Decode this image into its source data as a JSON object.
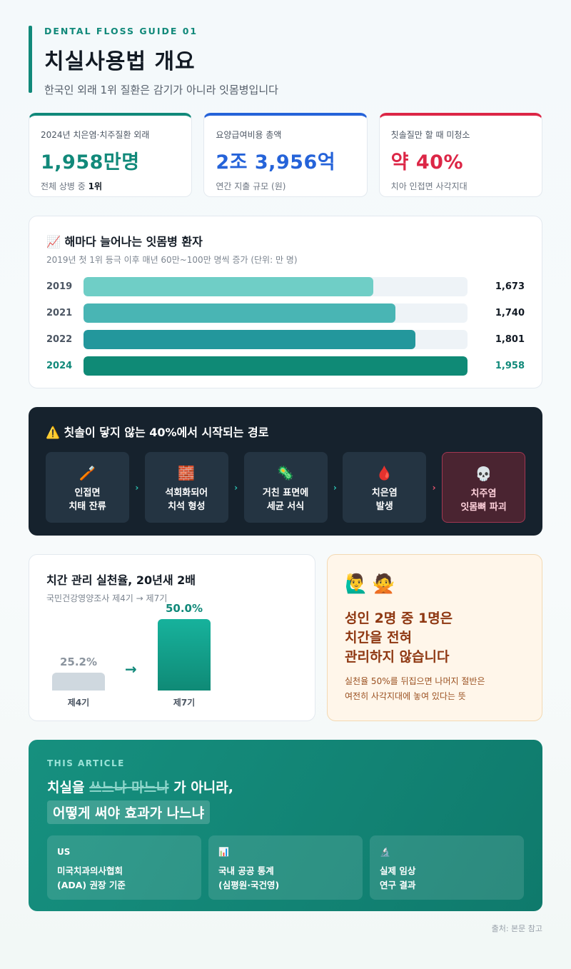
{
  "header": {
    "eyebrow": "DENTAL FLOSS GUIDE 01",
    "title": "치실사용법 개요",
    "subtitle": "한국인 외래 1위 질환은 감기가 아니라 잇몸병입니다"
  },
  "stats": [
    {
      "label": "2024년 치은염·치주질환 외래",
      "value": "1,958만명",
      "note_prefix": "전체 상병 중 ",
      "note_bold": "1위",
      "color": "#11897a"
    },
    {
      "label": "요양급여비용 총액",
      "value": "2조 3,956억",
      "note_prefix": "연간 지출 규모 (원)",
      "note_bold": "",
      "color": "#2563d9"
    },
    {
      "label": "칫솔질만 할 때 미청소",
      "value": "약 40%",
      "note_prefix": "치아 인접면 사각지대",
      "note_bold": "",
      "color": "#dc2646"
    }
  ],
  "growth": {
    "icon": "📈",
    "title": "해마다 늘어나는 잇몸병 환자",
    "subtitle": "2019년 첫 1위 등극 이후 매년 60만~100만 명씩 증가 (단위: 만 명)"
  },
  "chart_data": {
    "type": "bar",
    "orientation": "horizontal",
    "categories": [
      "2019",
      "2021",
      "2022",
      "2024"
    ],
    "values": [
      1673,
      1740,
      1801,
      1958
    ],
    "value_labels": [
      "1,673",
      "1,740",
      "1,801",
      "1,958"
    ],
    "unit": "만 명",
    "highlight": "2024",
    "colors": [
      "#6fcec6",
      "#49b5b4",
      "#23979c",
      "#0f8a76"
    ]
  },
  "pathway": {
    "icon": "⚠️",
    "title": "칫솔이 닿지 않는 40%에서 시작되는 경로",
    "steps": [
      {
        "icon": "🪥",
        "line1": "인접면",
        "line2": "치태 잔류"
      },
      {
        "icon": "🧱",
        "line1": "석회화되어",
        "line2": "치석 형성"
      },
      {
        "icon": "🦠",
        "line1": "거친 표면에",
        "line2": "세균 서식"
      },
      {
        "icon": "🩸",
        "line1": "치은염",
        "line2": "발생"
      },
      {
        "icon": "💀",
        "line1": "치주염",
        "line2": "잇몸뼈 파괴"
      }
    ],
    "arrow": "›"
  },
  "practice": {
    "title": "치간 관리 실천율, 20년새 2배",
    "subtitle": "국민건강영양조사 제4기 → 제7기",
    "before": {
      "label": "제4기",
      "pct_label": "25.2%",
      "value": 25.2
    },
    "after": {
      "label": "제7기",
      "pct_label": "50.0%",
      "value": 50.0
    },
    "arrow": "→"
  },
  "callout": {
    "emoji": "🙋‍♂️🙅",
    "headline": "성인 2명 중 1명은\n치간을 전혀\n관리하지 않습니다",
    "body": "실천율 50%를 뒤집으면 나머지 절반은\n여전히 사각지대에 놓여 있다는 뜻"
  },
  "article": {
    "eyebrow": "THIS ARTICLE",
    "line1_prefix": "치실을 ",
    "line1_strike": "쓰느냐 마느냐",
    "line1_suffix": " 가 아니라,",
    "line2": "어떻게 써야 효과가 나느냐",
    "sources": [
      {
        "icon": "US",
        "label": "미국치과의사협회\n(ADA) 권장 기준"
      },
      {
        "icon": "📊",
        "label": "국내 공공 통계\n(심평원·국건영)"
      },
      {
        "icon": "🔬",
        "label": "실제 임상\n연구 결과"
      }
    ]
  },
  "footnote": "출처: 본문 참고"
}
